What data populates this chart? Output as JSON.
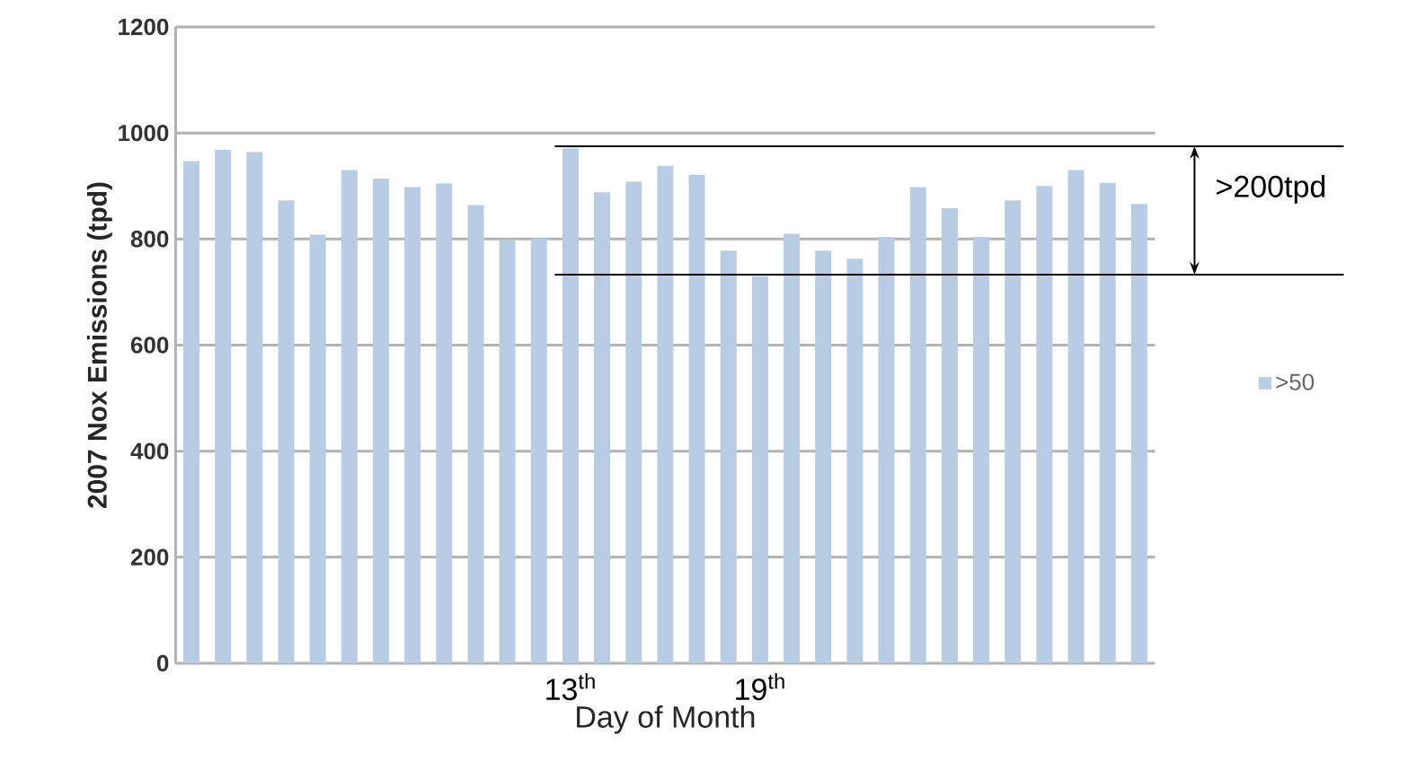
{
  "chart_data": {
    "type": "bar",
    "xlabel": "Day of Month",
    "ylabel": "2007 Nox Emissions (tpd)",
    "categories": [
      null,
      null,
      null,
      null,
      null,
      null,
      null,
      null,
      null,
      null,
      null,
      null,
      "13$^{th}$",
      null,
      null,
      null,
      null,
      null,
      "19$^{th}$",
      null,
      null,
      null,
      null,
      null,
      null,
      null,
      null,
      null,
      null,
      null,
      null
    ],
    "series": [
      {
        "name": ">50",
        "color": "#b8cce4",
        "values": [
          947,
          968,
          964,
          873,
          808,
          930,
          914,
          898,
          905,
          864,
          799,
          801,
          971,
          888,
          908,
          938,
          921,
          778,
          730,
          810,
          778,
          763,
          804,
          898,
          858,
          804,
          873,
          900,
          930,
          906,
          866
        ]
      }
    ],
    "ylim": [
      0,
      1200
    ],
    "yticks": [
      0,
      200,
      400,
      600,
      800,
      1000,
      1200
    ],
    "grid": "y",
    "legend": "right",
    "ref_lines": [
      {
        "axis": "y",
        "value": 975,
        "color": "#000000"
      },
      {
        "axis": "y",
        "value": 733,
        "color": "#000000"
      }
    ],
    "annotations": [
      ">200tpd"
    ]
  }
}
